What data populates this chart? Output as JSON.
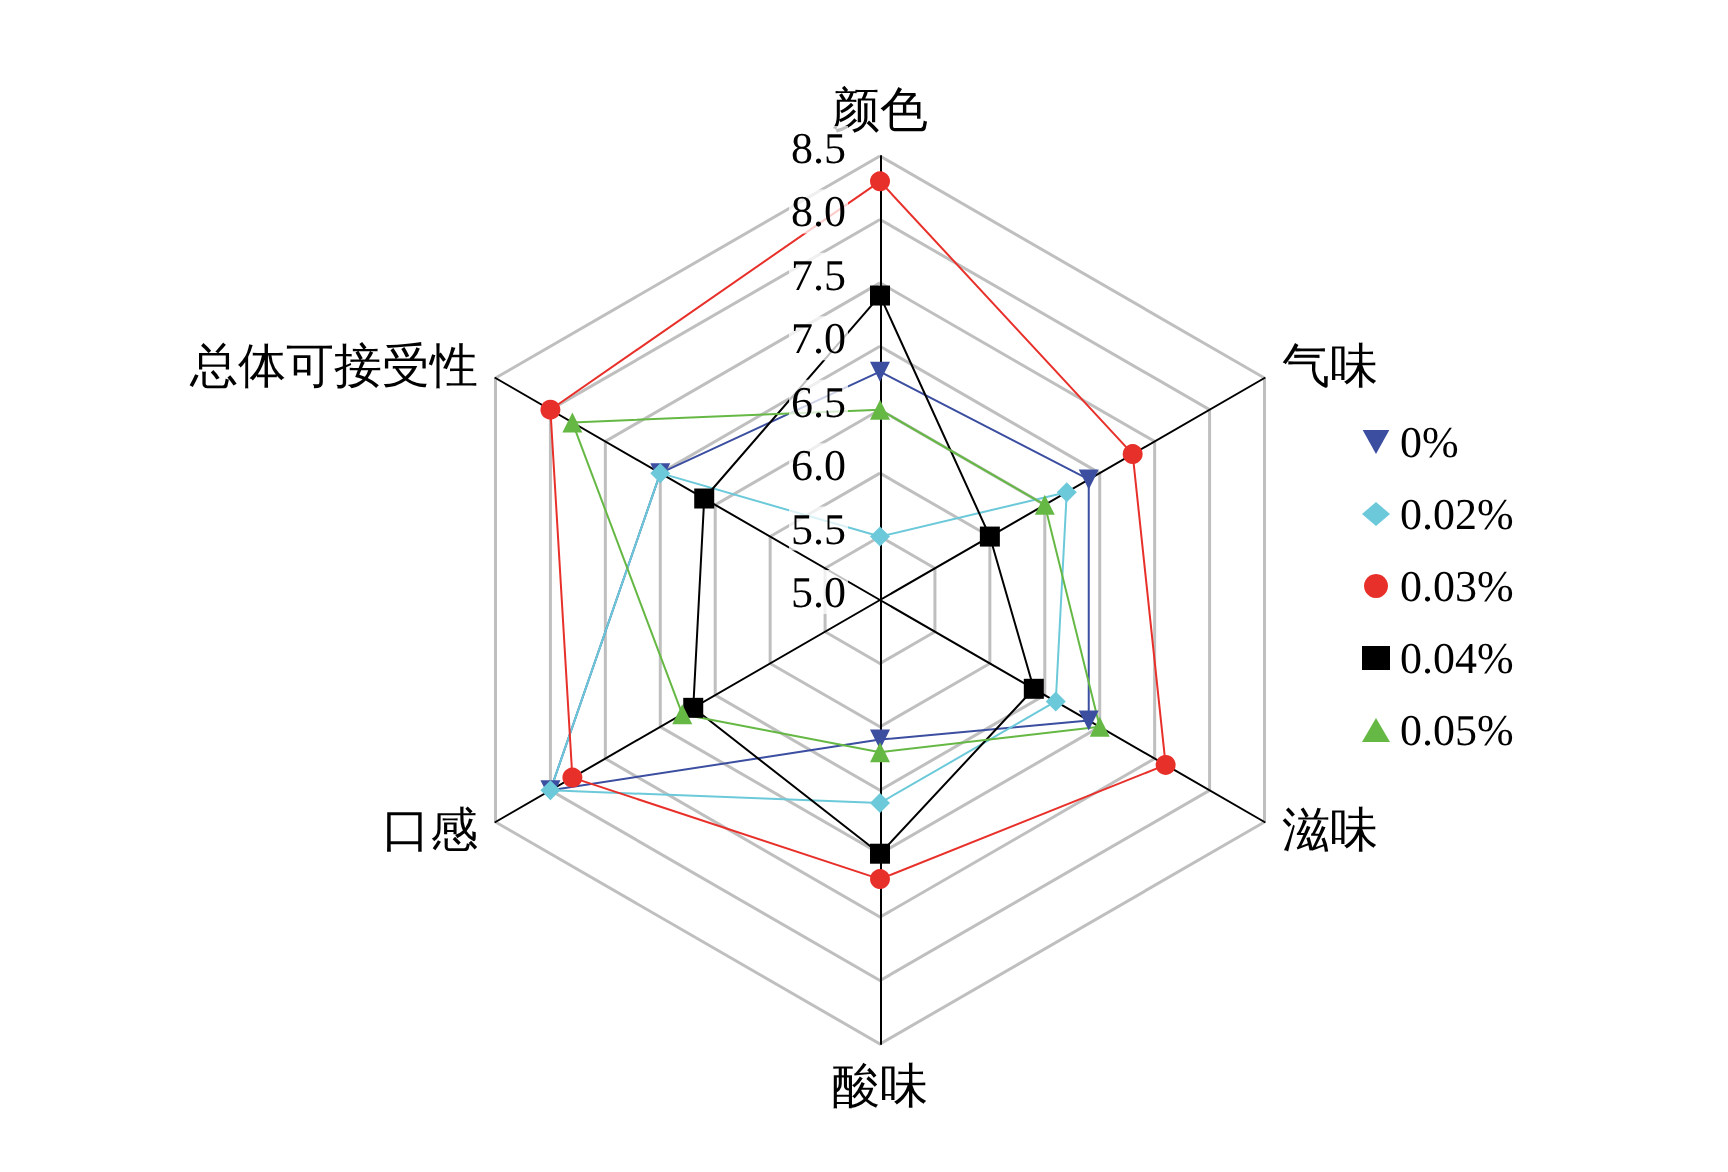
{
  "chart_data": {
    "type": "radar",
    "categories": [
      "颜色",
      "气味",
      "滋味",
      "酸味",
      "口感",
      "总体可接受性"
    ],
    "ylim": [
      5,
      8.5
    ],
    "yticks": [
      {
        "value": 5,
        "label": "5.0"
      },
      {
        "value": 5.5,
        "label": "5.5"
      },
      {
        "value": 6,
        "label": "6.0"
      },
      {
        "value": 6.5,
        "label": "6.5"
      },
      {
        "value": 7,
        "label": "7.0"
      },
      {
        "value": 7.5,
        "label": "7.5"
      },
      {
        "value": 8,
        "label": "8.0"
      },
      {
        "value": 8.5,
        "label": "8.5"
      }
    ],
    "grid": true,
    "legend": "right",
    "series": [
      {
        "name": "0%",
        "color": "#3b4ea0",
        "marker": "triangle_down",
        "values": [
          6.8,
          6.9,
          6.9,
          6.1,
          8.0,
          7.0
        ]
      },
      {
        "name": "0.02%",
        "color": "#6cc9d9",
        "marker": "diamond",
        "values": [
          5.5,
          6.7,
          6.6,
          6.6,
          8.0,
          7.0
        ]
      },
      {
        "name": "0.03%",
        "color": "#e8302a",
        "marker": "circle",
        "values": [
          8.3,
          7.3,
          7.6,
          7.2,
          7.8,
          8.0
        ]
      },
      {
        "name": "0.04%",
        "color": "#000000",
        "marker": "square",
        "values": [
          7.4,
          6.0,
          6.4,
          7.0,
          6.7,
          6.6
        ]
      },
      {
        "name": "0.05%",
        "color": "#66b845",
        "marker": "triangle",
        "values": [
          6.5,
          6.5,
          7.0,
          6.2,
          6.8,
          7.8
        ]
      }
    ]
  }
}
